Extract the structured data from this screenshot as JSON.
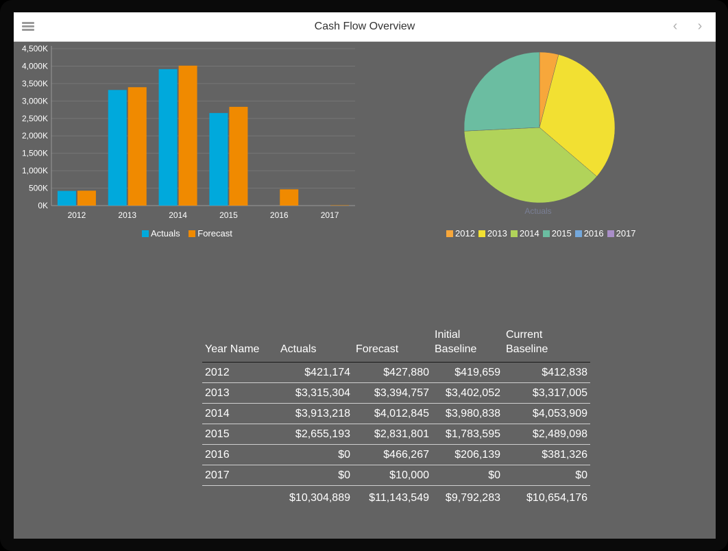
{
  "header": {
    "title": "Cash Flow Overview"
  },
  "colors": {
    "actuals": "#00a9dc",
    "forecast": "#f08a00"
  },
  "bar_chart": {
    "chart_data": {
      "type": "bar",
      "categories": [
        "2012",
        "2013",
        "2014",
        "2015",
        "2016",
        "2017"
      ],
      "series": [
        {
          "name": "Actuals",
          "color": "#00a9dc",
          "values": [
            421174,
            3315304,
            3913218,
            2655193,
            0,
            0
          ]
        },
        {
          "name": "Forecast",
          "color": "#f08a00",
          "values": [
            427880,
            3394757,
            4012845,
            2831801,
            466267,
            10000
          ]
        }
      ],
      "yticks": [
        "0K",
        "500K",
        "1,000K",
        "1,500K",
        "2,000K",
        "2,500K",
        "3,000K",
        "3,500K",
        "4,000K",
        "4,500K"
      ],
      "ylim": [
        0,
        4500000
      ],
      "legend_position": "bottom"
    }
  },
  "pie_chart": {
    "chart_data": {
      "type": "pie",
      "title": "Actuals",
      "labels": [
        "2012",
        "2013",
        "2014",
        "2015",
        "2016",
        "2017"
      ],
      "values": [
        421174,
        3315304,
        3913218,
        2655193,
        0,
        0
      ],
      "colors": [
        "#f7a73b",
        "#f2e032",
        "#b1d35a",
        "#6bbda1",
        "#74a8dc",
        "#a98ec8"
      ],
      "legend_position": "bottom"
    }
  },
  "table": {
    "headers": {
      "year": "Year Name",
      "actuals": "Actuals",
      "forecast": "Forecast",
      "initial_l1": "Initial",
      "initial_l2": "Baseline",
      "current_l1": "Current",
      "current_l2": "Baseline"
    },
    "rows": [
      {
        "year": "2012",
        "actuals": "$421,174",
        "forecast": "$427,880",
        "initial": "$419,659",
        "current": "$412,838"
      },
      {
        "year": "2013",
        "actuals": "$3,315,304",
        "forecast": "$3,394,757",
        "initial": "$3,402,052",
        "current": "$3,317,005"
      },
      {
        "year": "2014",
        "actuals": "$3,913,218",
        "forecast": "$4,012,845",
        "initial": "$3,980,838",
        "current": "$4,053,909"
      },
      {
        "year": "2015",
        "actuals": "$2,655,193",
        "forecast": "$2,831,801",
        "initial": "$1,783,595",
        "current": "$2,489,098"
      },
      {
        "year": "2016",
        "actuals": "$0",
        "forecast": "$466,267",
        "initial": "$206,139",
        "current": "$381,326"
      },
      {
        "year": "2017",
        "actuals": "$0",
        "forecast": "$10,000",
        "initial": "$0",
        "current": "$0"
      }
    ],
    "totals": {
      "actuals": "$10,304,889",
      "forecast": "$11,143,549",
      "initial": "$9,792,283",
      "current": "$10,654,176"
    }
  }
}
